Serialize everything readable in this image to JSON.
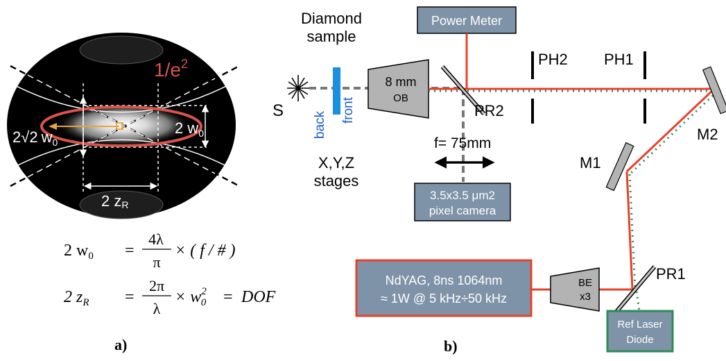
{
  "panel_a": {
    "label": "a)",
    "contour_label": "1/e",
    "contour_label_sup": "2",
    "waist_label": "2 w",
    "waist_sub": "0",
    "width_label_prefix": "2",
    "width_label_root": "√2",
    "width_label_var": "w",
    "width_label_sub": "0",
    "rayleigh_label": "2 z",
    "rayleigh_sub": "R",
    "eq1": {
      "lhs": "2 w",
      "lhs_sub": "0",
      "num": "4λ",
      "den": "π",
      "rhs": "× ( f / # )"
    },
    "eq2": {
      "lhs": "2 z",
      "lhs_sub": "R",
      "num": "2π",
      "den": "λ",
      "rhs": "× w",
      "rhs_sub": "0",
      "rhs_sup": "2",
      "tail": "DOF"
    },
    "colors": {
      "contour": "#d9534a",
      "arrow": "#e8a33a",
      "background": "#000000"
    }
  },
  "panel_b": {
    "label": "b)",
    "diamond_sample": [
      "Diamond",
      "sample"
    ],
    "stages": [
      "X,Y,Z",
      "stages"
    ],
    "source": "S",
    "back": "back",
    "front": "front",
    "objective": [
      "8 mm",
      "OB"
    ],
    "power_meter": "Power Meter",
    "pr2": "PR2",
    "ph2": "PH2",
    "ph1": "PH1",
    "m1": "M1",
    "m2": "M2",
    "pr1": "PR1",
    "lens": "f= 75mm",
    "camera": [
      "3.5x3.5 μm2",
      "pixel camera"
    ],
    "laser": [
      "NdYAG, 8ns 1064nm",
      "≈ 1W @ 5 kHz÷50 kHz"
    ],
    "beam_expander": [
      "BE",
      "x3"
    ],
    "ref_laser": [
      "Ref Laser",
      "Diode"
    ],
    "colors": {
      "beam": "#e8402a",
      "ref": "#2e8b57",
      "box": "#7f93a8",
      "sample": "#1a8fe0",
      "laser_border": "#e8402a",
      "ref_border": "#2e8b57"
    }
  }
}
